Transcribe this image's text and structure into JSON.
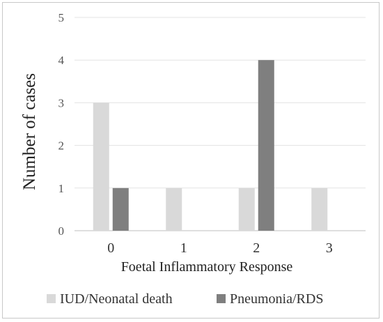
{
  "chart_data": {
    "type": "bar",
    "categories": [
      "0",
      "1",
      "2",
      "3"
    ],
    "series": [
      {
        "name": "IUD/Neonatal death",
        "values": [
          3,
          1,
          1,
          1
        ],
        "color": "#d9d9d9"
      },
      {
        "name": "Pneumonia/RDS",
        "values": [
          1,
          0,
          4,
          0
        ],
        "color": "#7f7f7f"
      }
    ],
    "title": "",
    "xlabel": "Foetal Inflammatory Response",
    "ylabel": "Number of cases",
    "ylim": [
      0,
      5
    ],
    "yticks": [
      "0",
      "1",
      "2",
      "3",
      "4",
      "5"
    ],
    "grid": true,
    "legend_position": "bottom"
  }
}
